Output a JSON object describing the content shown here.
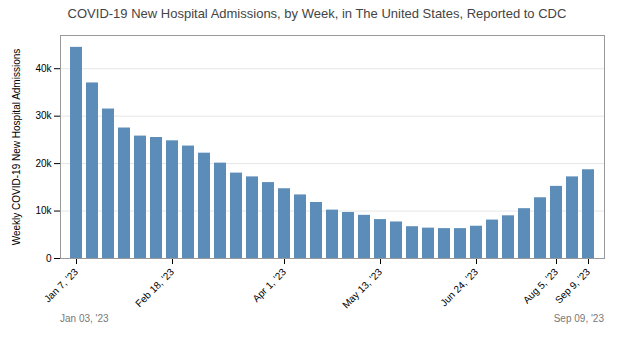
{
  "chart_data": {
    "type": "bar",
    "title": "COVID-19 New Hospital Admissions, by Week, in The United States, Reported to CDC",
    "ylabel": "Weekly COVID-19 New Hospital Admissions",
    "categories": [
      "Jan 7, '23",
      null,
      null,
      null,
      null,
      null,
      "Feb 18, '23",
      null,
      null,
      null,
      null,
      null,
      null,
      "Apr 1, '23",
      null,
      null,
      null,
      null,
      null,
      "May 13, '23",
      null,
      null,
      null,
      null,
      null,
      "Jun 24, '23",
      null,
      null,
      null,
      null,
      "Aug 5, '23",
      null,
      "Sep 9, '23"
    ],
    "values": [
      44500,
      37000,
      31500,
      27500,
      25800,
      25500,
      24800,
      23700,
      22200,
      20100,
      18000,
      17200,
      16000,
      14700,
      13400,
      11800,
      10200,
      9700,
      9100,
      8200,
      7700,
      6700,
      6400,
      6300,
      6300,
      6800,
      8100,
      9000,
      10500,
      12800,
      15200,
      17200,
      18700
    ],
    "color": "#5b8db8",
    "ylim": [
      0,
      47000
    ],
    "yticks": [
      0,
      {
        "value": 10000,
        "label": "10k"
      },
      {
        "value": 20000,
        "label": "20k"
      },
      {
        "value": 30000,
        "label": "30k"
      },
      {
        "value": 40000,
        "label": "40k"
      }
    ],
    "grid": true,
    "annotations": [
      "Jan 03, '23",
      "Sep 09, '23"
    ]
  }
}
